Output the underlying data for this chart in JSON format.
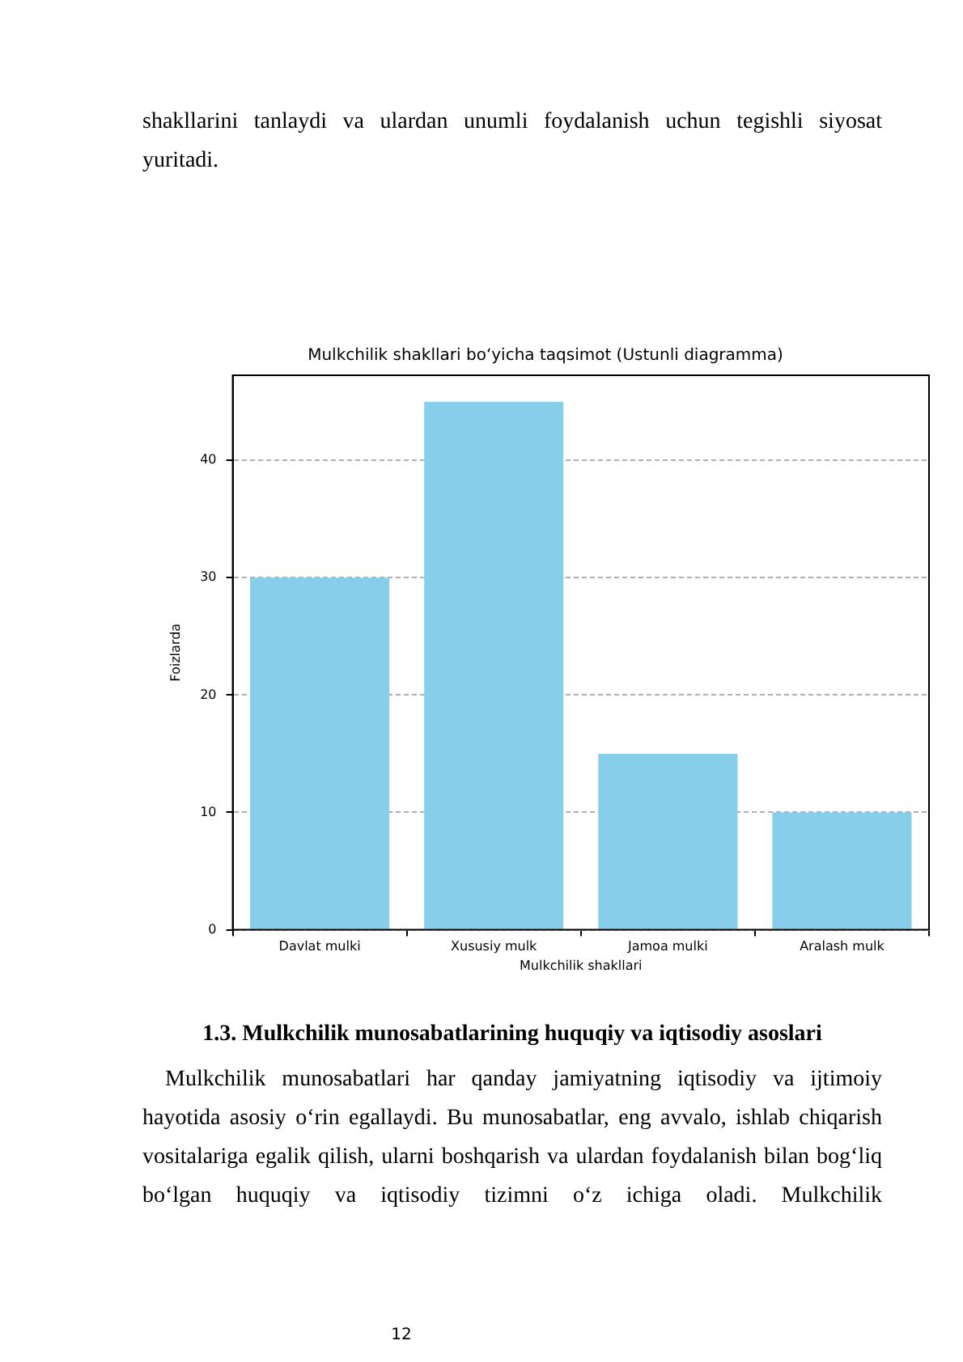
{
  "chart_data": {
    "type": "bar",
    "title": "Mulkchilik shakllari bo‘yicha taqsimot (Ustunli diagramma)",
    "xlabel": "Mulkchilik shakllari",
    "ylabel": "Foizlarda",
    "categories": [
      "Davlat mulki",
      "Xususiy mulk",
      "Jamoa mulki",
      "Aralash mulk"
    ],
    "values": [
      30,
      45,
      15,
      10
    ],
    "color": "#87ceeb",
    "ylim": [
      0,
      47.25
    ],
    "yticks": [
      0,
      10,
      20,
      30,
      40
    ],
    "grid": "y",
    "annotations": [
      "shakllarini tanlaydi va ulardan unumli foydalanish uchun tegishli siyosat yuritadi.",
      "1.3. Mulkchilik munosabatlarining huquqiy va iqtisodiy asoslari",
      "Mulkchilik munosabatlari har qanday jamiyatning iqtisodiy va ijtimoiy hayotida asosiy o‘rin egallaydi. Bu munosabatlar, eng avvalo, ishlab chiqarish vositalariga egalik qilish, ularni boshqarish va ulardan foydalanish bilan bog‘liq bo‘lgan huquqiy va iqtisodiy tizimni o‘z ichiga oladi. Mulkchilik",
      "12"
    ]
  }
}
